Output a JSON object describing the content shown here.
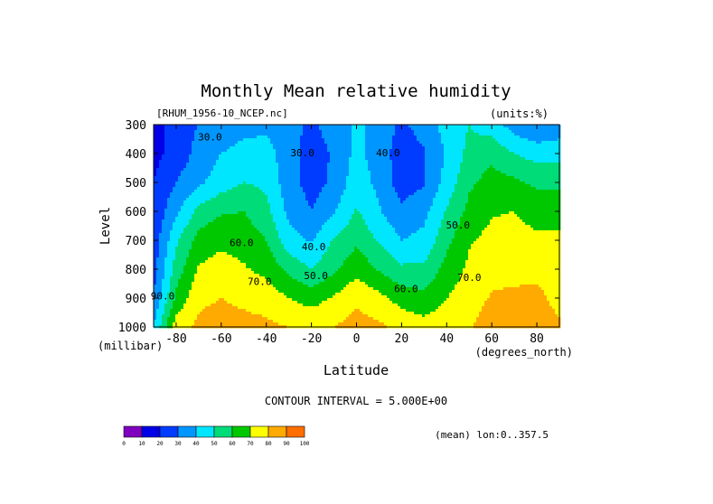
{
  "chart_data": {
    "type": "heatmap",
    "title": "Monthly Mean relative humidity",
    "file_label": "[RHUM_1956-10_NCEP.nc]",
    "units_label": "(units:%)",
    "xlabel": "Latitude",
    "x_units": "(degrees_north)",
    "ylabel": "Level",
    "y_units": "(millibar)",
    "contour_interval_text": "CONTOUR INTERVAL = 5.000E+00",
    "mean_note": "(mean) lon:0..357.5",
    "xlim": [
      -90,
      90
    ],
    "ylim": [
      1000,
      300
    ],
    "x_ticks": [
      -80,
      -60,
      -40,
      -20,
      0,
      20,
      40,
      60,
      80
    ],
    "x_tick_labels": [
      "-80",
      "-60",
      "-40",
      "-20",
      "0",
      "20",
      "40",
      "60",
      "80"
    ],
    "y_ticks": [
      300,
      400,
      500,
      600,
      700,
      800,
      900,
      1000
    ],
    "y_tick_labels": [
      "300",
      "400",
      "500",
      "600",
      "700",
      "800",
      "900",
      "1000"
    ],
    "contour_levels": [
      0,
      10,
      20,
      30,
      40,
      50,
      60,
      70,
      80,
      90,
      100
    ],
    "colorbar_labels": [
      "0",
      "10",
      "20",
      "30",
      "40",
      "50",
      "60",
      "70",
      "80",
      "90",
      "100"
    ],
    "colors": [
      "#7f00bf",
      "#0000e6",
      "#003cff",
      "#0096ff",
      "#00e6ff",
      "#00dc78",
      "#00c800",
      "#ffff00",
      "#ffaa00",
      "#ff6e00",
      "#ff0000"
    ],
    "latitudes": [
      -90,
      -80,
      -70,
      -60,
      -50,
      -40,
      -30,
      -20,
      -10,
      0,
      10,
      20,
      30,
      40,
      50,
      60,
      70,
      80,
      90
    ],
    "levels": [
      300,
      400,
      500,
      600,
      700,
      800,
      900,
      1000
    ],
    "values": [
      [
        13,
        26,
        30,
        33,
        36,
        38,
        33,
        28,
        34,
        42,
        36,
        28,
        34,
        44,
        50,
        45,
        35,
        30,
        33
      ],
      [
        17,
        24,
        33,
        40,
        44,
        44,
        34,
        26,
        31,
        43,
        35,
        25,
        29,
        41,
        53,
        57,
        50,
        46,
        47
      ],
      [
        20,
        30,
        38,
        45,
        50,
        48,
        34,
        26,
        32,
        46,
        37,
        25,
        29,
        44,
        58,
        64,
        62,
        58,
        58
      ],
      [
        22,
        38,
        53,
        59,
        60,
        53,
        37,
        30,
        39,
        51,
        41,
        32,
        37,
        51,
        63,
        69,
        70,
        66,
        66
      ],
      [
        24,
        48,
        64,
        68,
        66,
        60,
        44,
        39,
        51,
        58,
        49,
        40,
        43,
        57,
        69,
        73,
        74,
        72,
        72
      ],
      [
        26,
        55,
        71,
        74,
        71,
        67,
        57,
        50,
        58,
        67,
        59,
        52,
        52,
        64,
        72,
        77,
        77,
        77,
        78
      ],
      [
        30,
        62,
        78,
        80,
        78,
        76,
        70,
        66,
        71,
        78,
        73,
        66,
        63,
        70,
        75,
        81,
        82,
        83,
        76
      ],
      [
        40,
        76,
        82,
        84,
        83,
        82,
        80,
        78,
        80,
        84,
        82,
        77,
        74,
        76,
        79,
        86,
        88,
        86,
        82
      ]
    ],
    "contour_labels": [
      {
        "text": "30.0",
        "lat": -65,
        "level": 355
      },
      {
        "text": "30.0",
        "lat": -24,
        "level": 410
      },
      {
        "text": "40.0",
        "lat": 14,
        "level": 410
      },
      {
        "text": "50.0",
        "lat": 45,
        "level": 660
      },
      {
        "text": "60.0",
        "lat": -51,
        "level": 720
      },
      {
        "text": "40.0",
        "lat": -19,
        "level": 735
      },
      {
        "text": "50.0",
        "lat": -18,
        "level": 835
      },
      {
        "text": "70.0",
        "lat": -43,
        "level": 855
      },
      {
        "text": "60.0",
        "lat": 22,
        "level": 880
      },
      {
        "text": "70.0",
        "lat": 50,
        "level": 840
      },
      {
        "text": "90.0",
        "lat": -86,
        "level": 905
      }
    ],
    "grid": false,
    "legend": "bottom-left colorbar"
  }
}
